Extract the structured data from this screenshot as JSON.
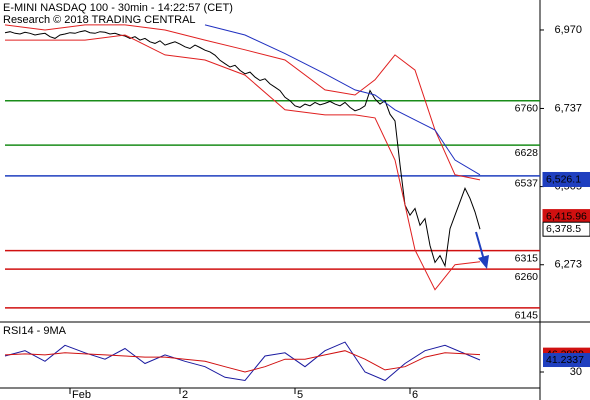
{
  "chart_data": [
    {
      "type": "line",
      "title": "E-MINI NASDAQ 100 - 30min - 14:22:57 (CET)",
      "subtitle": "Research © 2018 TRADING CENTRAL",
      "xlim": [
        -1,
        107
      ],
      "xticks": [
        {
          "value": 13,
          "label": "Feb"
        },
        {
          "value": 35,
          "label": "2"
        },
        {
          "value": 58,
          "label": "5"
        },
        {
          "value": 81,
          "label": "6"
        }
      ],
      "ylim": [
        6103,
        7059
      ],
      "yticks": [
        {
          "value": 6970,
          "label": "6,970"
        },
        {
          "value": 6737,
          "label": "6,737"
        },
        {
          "value": 6505,
          "label": "6,505"
        },
        {
          "value": 6273,
          "label": "6,273"
        }
      ],
      "series": [
        {
          "color": "#000000",
          "x": [
            0,
            1,
            2,
            3,
            4,
            5,
            6,
            7,
            8,
            9,
            10,
            11,
            12,
            13,
            14,
            15,
            16,
            17,
            18,
            19,
            20,
            21,
            22,
            23,
            24,
            25,
            26,
            27,
            28,
            29,
            30,
            31,
            32,
            33,
            34,
            35,
            36,
            37,
            38,
            39,
            40,
            41,
            42,
            43,
            44,
            45,
            46,
            47,
            48,
            49,
            50,
            51,
            52,
            53,
            54,
            55,
            56,
            57,
            58,
            59,
            60,
            61,
            62,
            63,
            64,
            65,
            66,
            67,
            68,
            69,
            70,
            71,
            72,
            73,
            74,
            75,
            76,
            77,
            78,
            79,
            80,
            81,
            82,
            83,
            84,
            85,
            86,
            87,
            88,
            89,
            90,
            91,
            92,
            93,
            94,
            95
          ],
          "values": [
            6962,
            6965,
            6960,
            6958,
            6963,
            6960,
            6955,
            6958,
            6960,
            6950,
            6945,
            6955,
            6958,
            6962,
            6960,
            6965,
            6968,
            6962,
            6960,
            6965,
            6963,
            6958,
            6960,
            6955,
            6952,
            6945,
            6950,
            6940,
            6945,
            6935,
            6930,
            6938,
            6925,
            6930,
            6935,
            6928,
            6920,
            6915,
            6925,
            6918,
            6910,
            6905,
            6895,
            6880,
            6870,
            6860,
            6865,
            6850,
            6840,
            6845,
            6830,
            6820,
            6825,
            6810,
            6800,
            6790,
            6770,
            6760,
            6745,
            6740,
            6750,
            6745,
            6755,
            6748,
            6752,
            6758,
            6750,
            6745,
            6755,
            6740,
            6730,
            6735,
            6745,
            6790,
            6765,
            6750,
            6760,
            6720,
            6700,
            6570,
            6450,
            6420,
            6440,
            6390,
            6410,
            6330,
            6280,
            6300,
            6270,
            6380,
            6420,
            6460,
            6500,
            6470,
            6430,
            6378.5
          ]
        },
        {
          "color": "#e02020",
          "x": [
            0,
            8,
            16,
            24,
            32,
            40,
            48,
            56,
            64,
            70,
            74,
            78,
            82,
            86,
            90,
            95
          ],
          "values": [
            6985,
            6970,
            6985,
            6985,
            6970,
            6940,
            6911,
            6881,
            6792,
            6777,
            6822,
            6896,
            6851,
            6673,
            6540,
            6525
          ]
        },
        {
          "color": "#e02020",
          "x": [
            0,
            8,
            16,
            24,
            32,
            40,
            48,
            56,
            64,
            70,
            74,
            78,
            82,
            86,
            90,
            95
          ],
          "values": [
            6940,
            6940,
            6940,
            6955,
            6896,
            6881,
            6836,
            6733,
            6718,
            6718,
            6709,
            6584,
            6317,
            6199,
            6273,
            6282
          ]
        },
        {
          "color": "#2030c0",
          "x": [
            40,
            48,
            56,
            64,
            70,
            74,
            78,
            82,
            86,
            90,
            95
          ],
          "values": [
            6985,
            6955,
            6900,
            6840,
            6792,
            6777,
            6733,
            6703,
            6673,
            6584,
            6540
          ]
        }
      ],
      "levels": [
        {
          "value": 6760,
          "color": "#1a8c1a"
        },
        {
          "value": 6628,
          "color": "#1a8c1a"
        },
        {
          "value": 6537,
          "color": "#1f3fbf"
        },
        {
          "value": 6315,
          "color": "#d01010"
        },
        {
          "value": 6260,
          "color": "#d01010"
        },
        {
          "value": 6145,
          "color": "#d01010"
        }
      ],
      "price_tags": [
        {
          "value": 6526.1,
          "label": "6,526.1",
          "color": "#1f3fbf"
        },
        {
          "value": 6415.96,
          "label": "6,415.96",
          "color": "#d01010"
        },
        {
          "value": 6378.5,
          "label": "6,378.5",
          "color": "#ffffff"
        }
      ]
    },
    {
      "type": "line",
      "title": "RSI14 - 9MA",
      "xlim": [
        -1,
        107
      ],
      "ylim": [
        15,
        75
      ],
      "yticks": [
        30
      ],
      "series": [
        {
          "color": "#1a1aa0",
          "x": [
            0,
            4,
            8,
            12,
            16,
            20,
            24,
            28,
            32,
            36,
            40,
            44,
            48,
            52,
            56,
            60,
            64,
            68,
            72,
            76,
            80,
            84,
            88,
            95
          ],
          "values": [
            45,
            50,
            40,
            55,
            48,
            42,
            52,
            38,
            46,
            40,
            35,
            25,
            22,
            45,
            48,
            35,
            50,
            58,
            30,
            22,
            38,
            50,
            55,
            41.2337
          ]
        },
        {
          "color": "#d01010",
          "x": [
            0,
            4,
            8,
            12,
            16,
            20,
            24,
            28,
            32,
            36,
            40,
            44,
            48,
            52,
            56,
            60,
            64,
            68,
            72,
            76,
            80,
            84,
            88,
            95
          ],
          "values": [
            46,
            47,
            46,
            48,
            47,
            46,
            45,
            44,
            44,
            42,
            40,
            35,
            30,
            35,
            42,
            42,
            46,
            50,
            42,
            32,
            35,
            44,
            48,
            46.2899
          ]
        }
      ],
      "tags": [
        {
          "value": 46.2899,
          "color": "#d01010"
        },
        {
          "value": 41.2337,
          "color": "#1f3fbf"
        }
      ]
    }
  ]
}
